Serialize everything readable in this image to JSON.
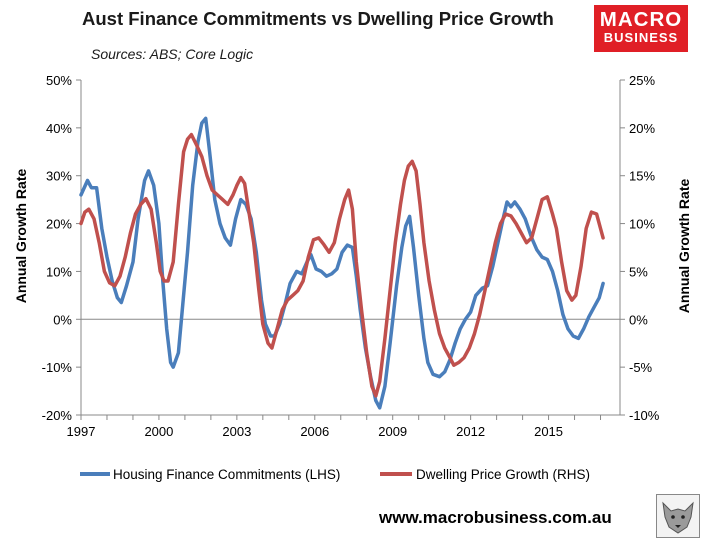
{
  "header": {
    "title": "Aust Finance Commitments vs Dwelling Price Growth",
    "subtitle": "Sources: ABS; Core Logic"
  },
  "logo": {
    "line1": "MACRO",
    "line2": "BUSINESS",
    "color": "#e01f26"
  },
  "footer": {
    "website": "www.macrobusiness.com.au",
    "mascot_icon": "wolf-icon"
  },
  "chart_data": {
    "type": "line",
    "title": "Aust Finance Commitments vs Dwelling Price Growth",
    "ylabel_left": "Annual Growth Rate",
    "ylabel_right": "Annual Growth Rate",
    "xlim": [
      1997,
      2017.75
    ],
    "ylim_left": [
      -20,
      50
    ],
    "ylim_right": [
      -10,
      25
    ],
    "x_ticks": [
      1997,
      2000,
      2003,
      2006,
      2009,
      2012,
      2015
    ],
    "y_ticks_left": [
      -20,
      -10,
      0,
      10,
      20,
      30,
      40,
      50
    ],
    "y_ticks_right": [
      -10,
      -5,
      0,
      5,
      10,
      15,
      20,
      25
    ],
    "y_tick_labels_left": [
      "-20%",
      "-10%",
      "0%",
      "10%",
      "20%",
      "30%",
      "40%",
      "50%"
    ],
    "y_tick_labels_right": [
      "-10%",
      "-5%",
      "0%",
      "5%",
      "10%",
      "15%",
      "20%",
      "25%"
    ],
    "legend_position": "bottom",
    "series": [
      {
        "name": "Housing Finance Commitments (LHS)",
        "axis": "left",
        "color": "#4a7ebb",
        "points": [
          [
            1997.0,
            26
          ],
          [
            1997.25,
            29
          ],
          [
            1997.4,
            27.5
          ],
          [
            1997.6,
            27.5
          ],
          [
            1997.8,
            19
          ],
          [
            1998.0,
            13
          ],
          [
            1998.2,
            8
          ],
          [
            1998.4,
            4.5
          ],
          [
            1998.55,
            3.5
          ],
          [
            1998.75,
            7
          ],
          [
            1999.0,
            12
          ],
          [
            1999.2,
            21
          ],
          [
            1999.45,
            29
          ],
          [
            1999.6,
            31
          ],
          [
            1999.8,
            28
          ],
          [
            2000.0,
            20
          ],
          [
            2000.15,
            8
          ],
          [
            2000.3,
            -2
          ],
          [
            2000.45,
            -9
          ],
          [
            2000.55,
            -10
          ],
          [
            2000.75,
            -7
          ],
          [
            2000.9,
            2
          ],
          [
            2001.1,
            14
          ],
          [
            2001.3,
            28
          ],
          [
            2001.5,
            37
          ],
          [
            2001.65,
            41
          ],
          [
            2001.8,
            42
          ],
          [
            2001.95,
            35
          ],
          [
            2002.15,
            25
          ],
          [
            2002.35,
            20
          ],
          [
            2002.55,
            17
          ],
          [
            2002.75,
            15.5
          ],
          [
            2002.95,
            21
          ],
          [
            2003.15,
            25
          ],
          [
            2003.35,
            24
          ],
          [
            2003.55,
            21
          ],
          [
            2003.75,
            14
          ],
          [
            2003.95,
            4
          ],
          [
            2004.1,
            -1
          ],
          [
            2004.3,
            -3.5
          ],
          [
            2004.45,
            -3.5
          ],
          [
            2004.65,
            -1
          ],
          [
            2004.85,
            3
          ],
          [
            2005.05,
            7.5
          ],
          [
            2005.3,
            10
          ],
          [
            2005.5,
            9.5
          ],
          [
            2005.7,
            12
          ],
          [
            2005.85,
            13.5
          ],
          [
            2006.05,
            10.5
          ],
          [
            2006.25,
            10
          ],
          [
            2006.45,
            9
          ],
          [
            2006.65,
            9.5
          ],
          [
            2006.85,
            10.5
          ],
          [
            2007.05,
            14
          ],
          [
            2007.25,
            15.5
          ],
          [
            2007.45,
            15
          ],
          [
            2007.6,
            9
          ],
          [
            2007.75,
            2
          ],
          [
            2007.95,
            -6
          ],
          [
            2008.15,
            -12
          ],
          [
            2008.35,
            -17
          ],
          [
            2008.5,
            -18.5
          ],
          [
            2008.7,
            -14
          ],
          [
            2008.9,
            -5
          ],
          [
            2009.15,
            7
          ],
          [
            2009.35,
            15
          ],
          [
            2009.5,
            19.5
          ],
          [
            2009.65,
            21.5
          ],
          [
            2009.8,
            15
          ],
          [
            2010.0,
            5
          ],
          [
            2010.2,
            -4
          ],
          [
            2010.35,
            -9
          ],
          [
            2010.55,
            -11.5
          ],
          [
            2010.8,
            -12
          ],
          [
            2011.0,
            -11
          ],
          [
            2011.2,
            -8.5
          ],
          [
            2011.4,
            -5
          ],
          [
            2011.6,
            -2
          ],
          [
            2011.8,
            0
          ],
          [
            2012.0,
            1.5
          ],
          [
            2012.2,
            5
          ],
          [
            2012.45,
            6.5
          ],
          [
            2012.65,
            7
          ],
          [
            2012.85,
            11
          ],
          [
            2013.05,
            16
          ],
          [
            2013.25,
            21
          ],
          [
            2013.4,
            24.5
          ],
          [
            2013.55,
            23.5
          ],
          [
            2013.7,
            24.5
          ],
          [
            2013.9,
            23
          ],
          [
            2014.1,
            21
          ],
          [
            2014.35,
            17
          ],
          [
            2014.55,
            14.5
          ],
          [
            2014.75,
            13
          ],
          [
            2014.95,
            12.5
          ],
          [
            2015.15,
            10
          ],
          [
            2015.35,
            6
          ],
          [
            2015.55,
            1
          ],
          [
            2015.75,
            -2
          ],
          [
            2015.95,
            -3.5
          ],
          [
            2016.15,
            -4
          ],
          [
            2016.35,
            -2
          ],
          [
            2016.55,
            0.5
          ],
          [
            2016.75,
            2.5
          ],
          [
            2016.95,
            4.5
          ],
          [
            2017.1,
            7.5
          ]
        ]
      },
      {
        "name": "Dwelling Price Growth (RHS)",
        "axis": "right",
        "color": "#c0504d",
        "points": [
          [
            1997.0,
            10
          ],
          [
            1997.15,
            11.2
          ],
          [
            1997.3,
            11.5
          ],
          [
            1997.5,
            10.5
          ],
          [
            1997.7,
            8
          ],
          [
            1997.9,
            5
          ],
          [
            1998.1,
            3.8
          ],
          [
            1998.3,
            3.5
          ],
          [
            1998.5,
            4.5
          ],
          [
            1998.7,
            6.5
          ],
          [
            1998.9,
            9
          ],
          [
            1999.1,
            11
          ],
          [
            1999.3,
            12
          ],
          [
            1999.5,
            12.6
          ],
          [
            1999.7,
            11.5
          ],
          [
            1999.9,
            8
          ],
          [
            2000.05,
            5
          ],
          [
            2000.2,
            4
          ],
          [
            2000.35,
            4
          ],
          [
            2000.55,
            6
          ],
          [
            2000.75,
            12
          ],
          [
            2000.95,
            17.5
          ],
          [
            2001.1,
            18.8
          ],
          [
            2001.25,
            19.3
          ],
          [
            2001.45,
            18.2
          ],
          [
            2001.65,
            17
          ],
          [
            2001.85,
            15
          ],
          [
            2002.05,
            13.5
          ],
          [
            2002.25,
            13
          ],
          [
            2002.45,
            12.5
          ],
          [
            2002.65,
            12
          ],
          [
            2002.85,
            13
          ],
          [
            2003.0,
            14
          ],
          [
            2003.15,
            14.8
          ],
          [
            2003.3,
            14.2
          ],
          [
            2003.45,
            11.5
          ],
          [
            2003.65,
            8
          ],
          [
            2003.85,
            3
          ],
          [
            2004.0,
            -0.5
          ],
          [
            2004.2,
            -2.5
          ],
          [
            2004.35,
            -3
          ],
          [
            2004.55,
            -1
          ],
          [
            2004.75,
            1
          ],
          [
            2004.95,
            2
          ],
          [
            2005.15,
            2.5
          ],
          [
            2005.35,
            3
          ],
          [
            2005.55,
            4
          ],
          [
            2005.75,
            6.5
          ],
          [
            2005.95,
            8.3
          ],
          [
            2006.15,
            8.5
          ],
          [
            2006.35,
            7.8
          ],
          [
            2006.55,
            7
          ],
          [
            2006.75,
            8
          ],
          [
            2006.95,
            10.5
          ],
          [
            2007.15,
            12.5
          ],
          [
            2007.3,
            13.5
          ],
          [
            2007.45,
            11.5
          ],
          [
            2007.6,
            6
          ],
          [
            2007.8,
            1
          ],
          [
            2008.0,
            -3.5
          ],
          [
            2008.2,
            -7
          ],
          [
            2008.35,
            -8
          ],
          [
            2008.5,
            -6.5
          ],
          [
            2008.7,
            -2
          ],
          [
            2008.9,
            3
          ],
          [
            2009.1,
            8
          ],
          [
            2009.3,
            12
          ],
          [
            2009.45,
            14.5
          ],
          [
            2009.6,
            16
          ],
          [
            2009.75,
            16.5
          ],
          [
            2009.9,
            15.5
          ],
          [
            2010.05,
            12
          ],
          [
            2010.2,
            8
          ],
          [
            2010.4,
            4
          ],
          [
            2010.6,
            1
          ],
          [
            2010.8,
            -1.5
          ],
          [
            2011.0,
            -3
          ],
          [
            2011.2,
            -4
          ],
          [
            2011.35,
            -4.8
          ],
          [
            2011.55,
            -4.5
          ],
          [
            2011.75,
            -4
          ],
          [
            2011.95,
            -3
          ],
          [
            2012.15,
            -1.5
          ],
          [
            2012.35,
            0.5
          ],
          [
            2012.55,
            3
          ],
          [
            2012.75,
            5.5
          ],
          [
            2012.95,
            8
          ],
          [
            2013.15,
            10
          ],
          [
            2013.35,
            11
          ],
          [
            2013.55,
            10.8
          ],
          [
            2013.75,
            10
          ],
          [
            2013.95,
            9
          ],
          [
            2014.15,
            8
          ],
          [
            2014.35,
            8.5
          ],
          [
            2014.55,
            10.5
          ],
          [
            2014.75,
            12.5
          ],
          [
            2014.95,
            12.8
          ],
          [
            2015.15,
            11
          ],
          [
            2015.3,
            9.5
          ],
          [
            2015.5,
            6
          ],
          [
            2015.7,
            3
          ],
          [
            2015.9,
            2
          ],
          [
            2016.05,
            2.5
          ],
          [
            2016.25,
            5.5
          ],
          [
            2016.45,
            9.5
          ],
          [
            2016.65,
            11.2
          ],
          [
            2016.85,
            11
          ],
          [
            2017.0,
            9.5
          ],
          [
            2017.1,
            8.5
          ]
        ]
      }
    ]
  }
}
